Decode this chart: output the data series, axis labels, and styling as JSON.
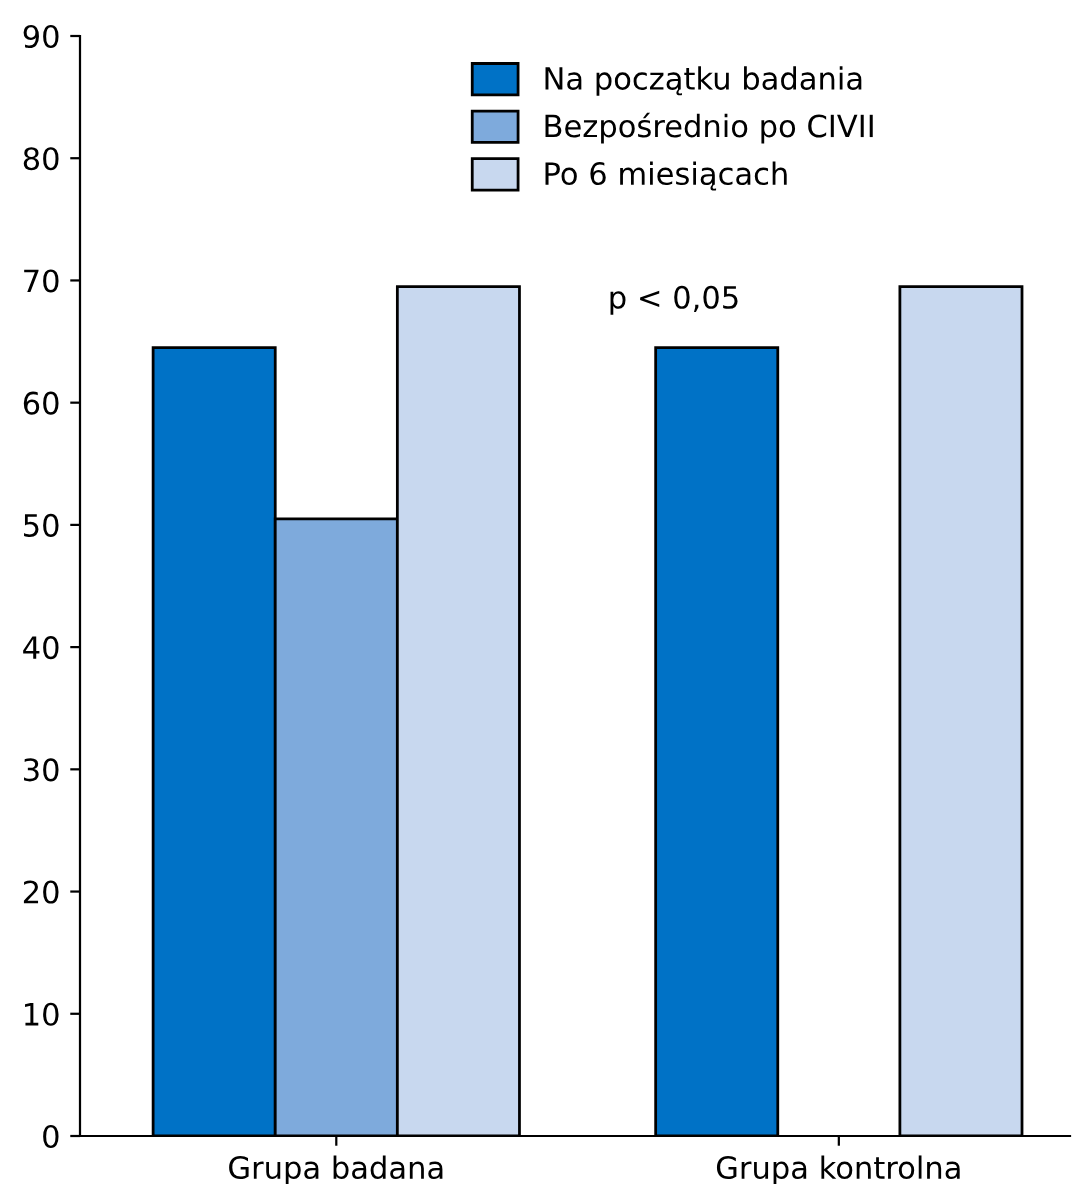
{
  "chart_data": {
    "type": "bar",
    "categories": [
      "Grupa badana",
      "Grupa kontrolna"
    ],
    "series": [
      {
        "name": "Na początku badania",
        "color": "#0072c6",
        "values": [
          64.5,
          64.5
        ]
      },
      {
        "name": "Bezpośrednio po CIVII",
        "color": "#7eaadc",
        "values": [
          50.5,
          null
        ]
      },
      {
        "name": "Po 6 miesiącach",
        "color": "#c8d8ef",
        "values": [
          69.5,
          69.5
        ]
      }
    ],
    "ylim": [
      0,
      90
    ],
    "yticks": [
      0,
      10,
      20,
      30,
      40,
      50,
      60,
      70,
      80,
      90
    ],
    "grid": false,
    "legend": "top",
    "annotations": [
      "p < 0,05"
    ]
  }
}
